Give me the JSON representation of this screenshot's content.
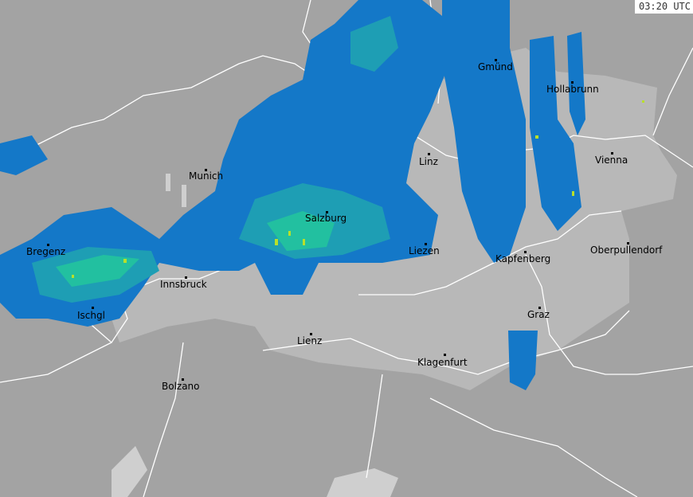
{
  "timestamp": "03:20 UTC",
  "colors": {
    "outside": "#a3a3a3",
    "austria": "#b8b8b8",
    "lake": "#cfcfcf",
    "border": "#ffffff",
    "radar_light": "#1478c8",
    "radar_mid": "#1e9eb4",
    "radar_strong": "#22c0a0",
    "radar_peak": "#b8e02a"
  },
  "cities": [
    {
      "name": "Gmünd"
    },
    {
      "name": "Hollabrunn"
    },
    {
      "name": "Vienna"
    },
    {
      "name": "Linz"
    },
    {
      "name": "Munich"
    },
    {
      "name": "Salzburg"
    },
    {
      "name": "Liezen"
    },
    {
      "name": "Kapfenberg"
    },
    {
      "name": "Oberpullendorf"
    },
    {
      "name": "Bregenz"
    },
    {
      "name": "Innsbruck"
    },
    {
      "name": "Ischgl"
    },
    {
      "name": "Graz"
    },
    {
      "name": "Lienz"
    },
    {
      "name": "Klagenfurt"
    },
    {
      "name": "Bolzano"
    }
  ]
}
